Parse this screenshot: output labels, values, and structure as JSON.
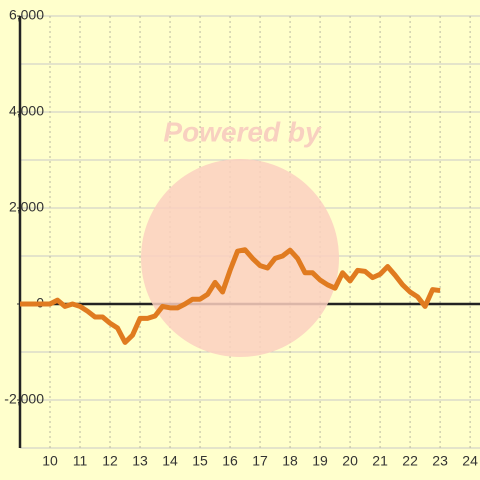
{
  "chart_data": {
    "type": "line",
    "watermark": "Powered by",
    "x": [
      9,
      9.25,
      9.5,
      9.75,
      10,
      10.25,
      10.5,
      10.75,
      11,
      11.25,
      11.5,
      11.75,
      12,
      12.25,
      12.5,
      12.75,
      13,
      13.25,
      13.5,
      13.75,
      14,
      14.25,
      14.5,
      14.75,
      15,
      15.25,
      15.5,
      15.75,
      16,
      16.25,
      16.5,
      16.75,
      17,
      17.25,
      17.5,
      17.75,
      18,
      18.25,
      18.5,
      18.75,
      19,
      19.25,
      19.5,
      19.75,
      20,
      20.25,
      20.5,
      20.75,
      21,
      21.25,
      21.5,
      21.75,
      22,
      22.25,
      22.5,
      22.75,
      23
    ],
    "series": [
      {
        "color": "#e07b20",
        "values": [
          0,
          0,
          0,
          0,
          0,
          80,
          -50,
          0,
          -50,
          -150,
          -270,
          -270,
          -400,
          -500,
          -800,
          -650,
          -300,
          -300,
          -250,
          -50,
          -80,
          -80,
          0,
          100,
          100,
          200,
          450,
          250,
          700,
          1100,
          1130,
          950,
          800,
          750,
          950,
          1000,
          1120,
          950,
          650,
          650,
          500,
          400,
          330,
          650,
          480,
          700,
          680,
          550,
          620,
          780,
          600,
          400,
          250,
          150,
          -50,
          300,
          280
        ]
      }
    ],
    "xlim": [
      9,
      24.33
    ],
    "xticks": [
      10,
      11,
      12,
      13,
      14,
      15,
      16,
      17,
      18,
      19,
      20,
      21,
      22,
      23,
      24
    ],
    "ylim": [
      -3000,
      6000
    ],
    "yticks": [
      {
        "value": -2000,
        "label": "-2,000"
      },
      0,
      {
        "value": 2000,
        "label": "2,000"
      },
      {
        "value": 4000,
        "label": "4,000"
      },
      {
        "value": 6000,
        "label": "6,000"
      }
    ],
    "ygrid": [
      -3000,
      -2000,
      -1000,
      0,
      1000,
      2000,
      3000,
      4000,
      5000,
      6000
    ],
    "grid": true
  }
}
